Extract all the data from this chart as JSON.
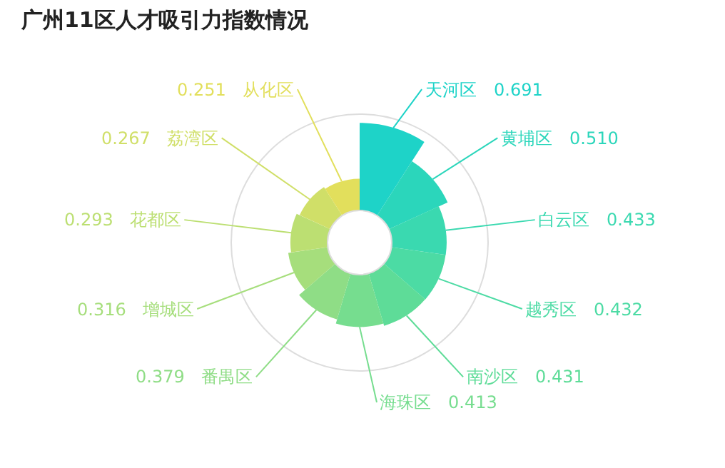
{
  "chart_data": {
    "type": "other",
    "title": "广州11区人才吸引力指数情况",
    "categories": [
      "天河区",
      "黄埔区",
      "白云区",
      "越秀区",
      "南沙区",
      "海珠区",
      "番禺区",
      "增城区",
      "花都区",
      "荔湾区",
      "从化区"
    ],
    "values": [
      0.691,
      0.51,
      0.433,
      0.432,
      0.431,
      0.413,
      0.379,
      0.316,
      0.293,
      0.267,
      0.251
    ],
    "value_labels": [
      "0.691",
      "0.510",
      "0.433",
      "0.432",
      "0.431",
      "0.413",
      "0.379",
      "0.316",
      "0.293",
      "0.267",
      "0.251"
    ],
    "colors": [
      "#1ed3c8",
      "#2bd6bb",
      "#3ad9b0",
      "#4cdba4",
      "#5edc98",
      "#76dd8f",
      "#8fdd86",
      "#a6de7c",
      "#bcdf72",
      "#d0df68",
      "#e2df5c"
    ]
  }
}
